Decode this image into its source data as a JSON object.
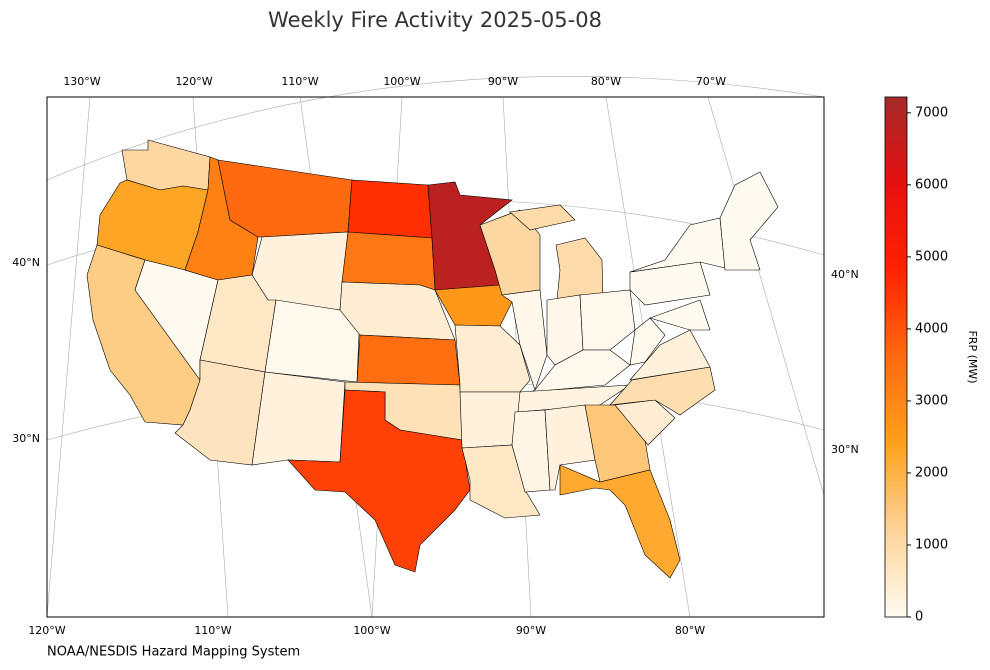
{
  "chart_data": {
    "type": "choropleth",
    "title": "Weekly Fire Activity 2025-05-08",
    "source": "NOAA/NESDIS Hazard Mapping System",
    "colorbar_label": "FRP (MW)",
    "clim": [
      0,
      7220
    ],
    "cticks": [
      0,
      1000,
      2000,
      3000,
      4000,
      5000,
      6000,
      7000
    ],
    "colors": [
      "#fffaf0",
      "#fdd49a",
      "#ffa01a",
      "#ff6a10",
      "#ff2200",
      "#e81010",
      "#a52a2a"
    ],
    "lon_labels_top": [
      "130°W",
      "120°W",
      "110°W",
      "100°W",
      "90°W",
      "80°W",
      "70°W"
    ],
    "lon_labels_bottom": [
      "120°W",
      "110°W",
      "100°W",
      "90°W",
      "80°W"
    ],
    "lat_labels_left": [
      "40°N",
      "30°N"
    ],
    "lat_labels_right": [
      "40°N",
      "30°N"
    ],
    "values": [
      1100,
      2300,
      1400,
      0,
      3100,
      3600,
      300,
      600,
      50,
      700,
      300,
      4600,
      3300,
      400,
      3500,
      800,
      4300,
      6800,
      2600,
      400,
      300,
      600,
      1100,
      100,
      1000,
      100,
      50,
      50,
      200,
      150,
      300,
      1500,
      2200,
      400,
      900,
      300,
      50,
      0,
      0,
      0,
      0,
      1000
    ]
  }
}
